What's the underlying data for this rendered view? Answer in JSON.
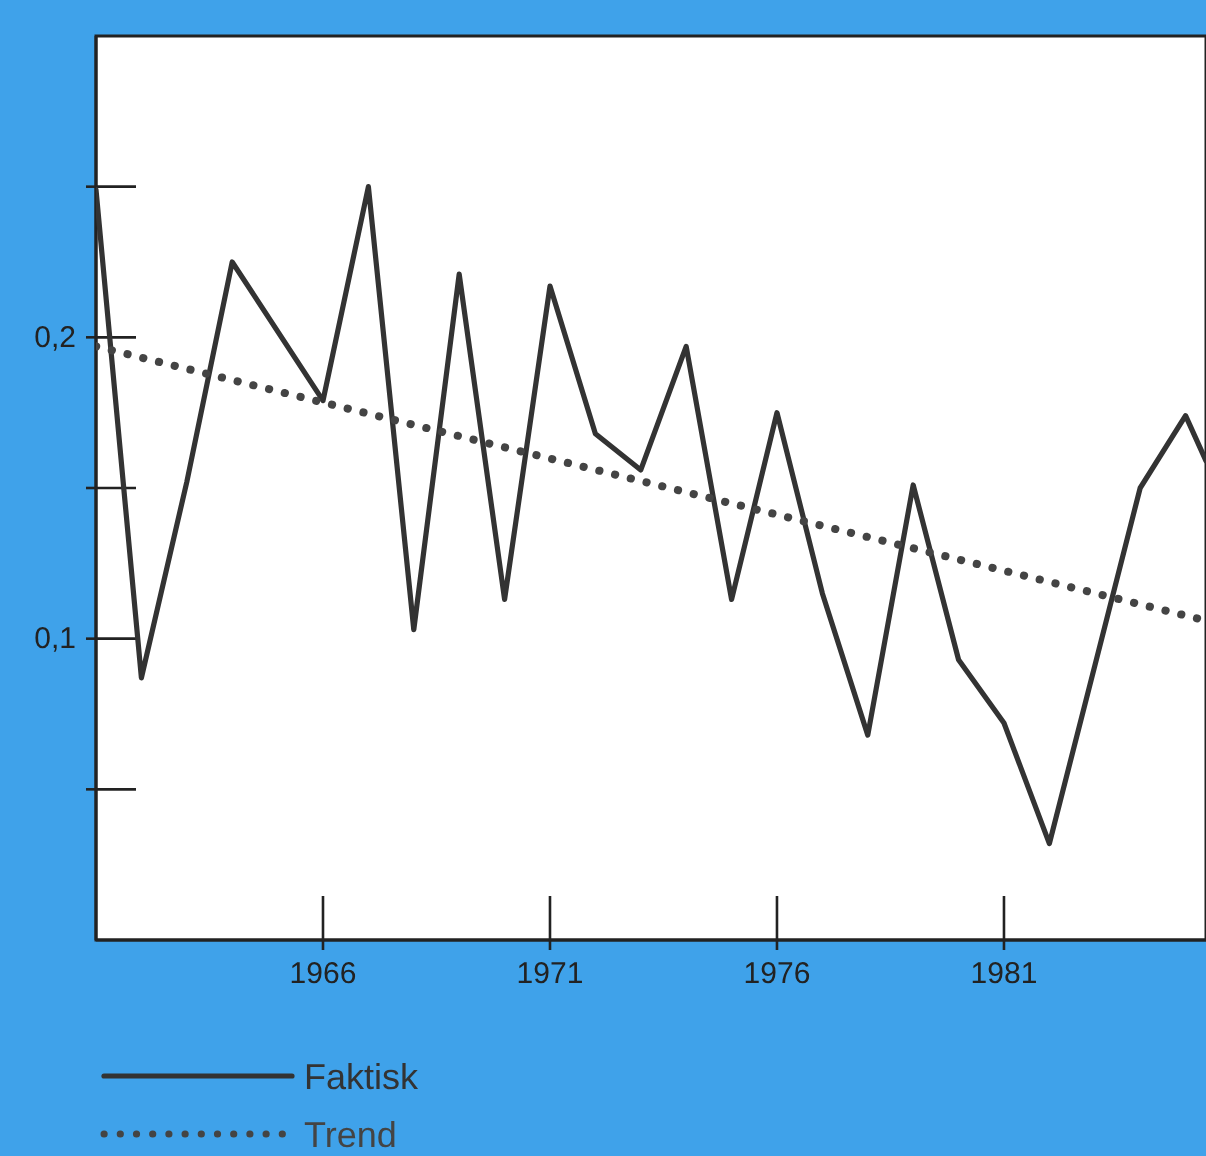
{
  "chart_data": {
    "type": "line",
    "xlim": [
      1961,
      1985.45
    ],
    "xticks": [
      1966,
      1971,
      1976,
      1981
    ],
    "ylim": [
      0,
      0.3
    ],
    "yticks": [
      {
        "value": 0.05,
        "label": null
      },
      {
        "value": 0.1,
        "label": "0,1"
      },
      {
        "value": 0.15,
        "label": null
      },
      {
        "value": 0.2,
        "label": "0,2"
      },
      {
        "value": 0.25,
        "label": null
      }
    ],
    "grid": false,
    "legend": "bottom left",
    "marker": "none",
    "series": [
      {
        "name": "Faktisk",
        "color": "#333333",
        "line_style": "solid",
        "x": [
          1961,
          1962,
          1963,
          1964,
          1966,
          1967,
          1968,
          1969,
          1970,
          1971,
          1972,
          1973,
          1974,
          1975,
          1976,
          1977,
          1978,
          1979,
          1980,
          1981,
          1982,
          1983,
          1984,
          1985,
          1985.45
        ],
        "values": [
          0.249,
          0.087,
          0.152,
          0.225,
          0.179,
          0.25,
          0.103,
          0.221,
          0.113,
          0.217,
          0.168,
          0.156,
          0.197,
          0.113,
          0.175,
          0.115,
          0.068,
          0.151,
          0.093,
          0.072,
          0.032,
          0.091,
          0.15,
          0.174,
          0.159
        ]
      },
      {
        "name": "Trend",
        "color": "#444444",
        "line_style": "dotted",
        "x": [
          1961,
          1985.45
        ],
        "values": [
          0.197,
          0.106
        ]
      }
    ]
  }
}
